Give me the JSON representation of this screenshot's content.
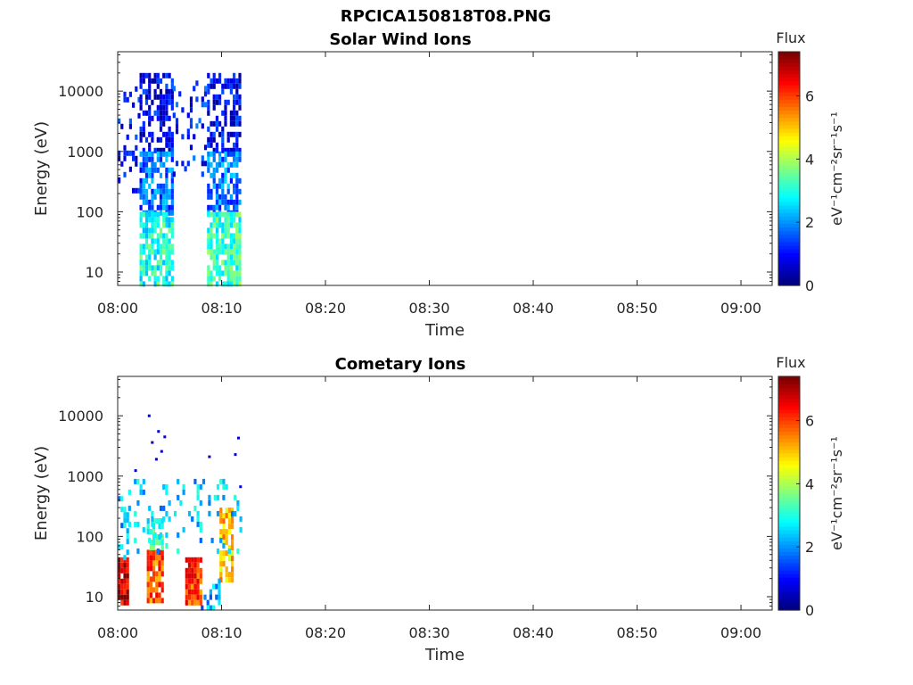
{
  "figure_title": "RPCICA150818T08.PNG",
  "chart_data": [
    {
      "type": "heatmap",
      "title": "Solar Wind Ions",
      "xlabel": "Time",
      "ylabel": "Energy (eV)",
      "y_scale": "log",
      "ylim": [
        6,
        45000
      ],
      "xlim": [
        "08:00",
        "09:03"
      ],
      "x_ticks": [
        "08:00",
        "08:10",
        "08:20",
        "08:30",
        "08:40",
        "08:50",
        "09:00"
      ],
      "y_ticks": [
        "10",
        "100",
        "1000",
        "10000"
      ],
      "y_tick_values": [
        10,
        100,
        1000,
        10000
      ],
      "colorbar": {
        "title": "Flux",
        "label": "eV⁻¹cm⁻²sr⁻¹s⁻¹",
        "ticks": [
          "0",
          "2",
          "4",
          "6"
        ],
        "range": [
          0,
          7.4
        ],
        "colormap": "jet"
      },
      "regions": [
        {
          "t_start_min": 0.0,
          "t_end_min": 2.0,
          "e_min": 200,
          "e_max": 12000,
          "flux": 1.0,
          "fill": 0.25
        },
        {
          "t_start_min": 2.1,
          "t_end_min": 5.3,
          "e_min": 1000,
          "e_max": 20000,
          "flux": 0.8,
          "fill": 0.6
        },
        {
          "t_start_min": 2.1,
          "t_end_min": 5.3,
          "e_min": 100,
          "e_max": 1000,
          "flux": 1.7,
          "fill": 0.7
        },
        {
          "t_start_min": 2.1,
          "t_end_min": 5.3,
          "e_min": 6,
          "e_max": 100,
          "flux": 3.0,
          "fill": 0.75
        },
        {
          "t_start_min": 5.3,
          "t_end_min": 8.6,
          "e_min": 400,
          "e_max": 15000,
          "flux": 1.2,
          "fill": 0.15
        },
        {
          "t_start_min": 8.6,
          "t_end_min": 11.9,
          "e_min": 1000,
          "e_max": 20000,
          "flux": 0.8,
          "fill": 0.6
        },
        {
          "t_start_min": 8.6,
          "t_end_min": 11.9,
          "e_min": 100,
          "e_max": 1000,
          "flux": 1.8,
          "fill": 0.7
        },
        {
          "t_start_min": 8.6,
          "t_end_min": 11.9,
          "e_min": 6,
          "e_max": 100,
          "flux": 3.2,
          "fill": 0.8
        }
      ]
    },
    {
      "type": "heatmap",
      "title": "Cometary Ions",
      "xlabel": "Time",
      "ylabel": "Energy (eV)",
      "y_scale": "log",
      "ylim": [
        6,
        45000
      ],
      "xlim": [
        "08:00",
        "09:03"
      ],
      "x_ticks": [
        "08:00",
        "08:10",
        "08:20",
        "08:30",
        "08:40",
        "08:50",
        "09:00"
      ],
      "y_ticks": [
        "10",
        "100",
        "1000",
        "10000"
      ],
      "y_tick_values": [
        10,
        100,
        1000,
        10000
      ],
      "colorbar": {
        "title": "Flux",
        "label": "eV⁻¹cm⁻²sr⁻¹s⁻¹",
        "ticks": [
          "0",
          "2",
          "4",
          "6"
        ],
        "range": [
          0,
          7.4
        ],
        "colormap": "jet"
      },
      "regions": [
        {
          "t_start_min": 0.0,
          "t_end_min": 1.0,
          "e_min": 8,
          "e_max": 45,
          "flux": 6.8,
          "fill": 0.95
        },
        {
          "t_start_min": 0.0,
          "t_end_min": 1.0,
          "e_min": 45,
          "e_max": 700,
          "flux": 2.3,
          "fill": 0.3
        },
        {
          "t_start_min": 2.8,
          "t_end_min": 4.3,
          "e_min": 8,
          "e_max": 60,
          "flux": 5.8,
          "fill": 0.9
        },
        {
          "t_start_min": 2.8,
          "t_end_min": 4.3,
          "e_min": 60,
          "e_max": 200,
          "flux": 3.0,
          "fill": 0.6
        },
        {
          "t_start_min": 6.5,
          "t_end_min": 8.0,
          "e_min": 8,
          "e_max": 45,
          "flux": 6.0,
          "fill": 0.9
        },
        {
          "t_start_min": 9.8,
          "t_end_min": 11.2,
          "e_min": 20,
          "e_max": 300,
          "flux": 5.0,
          "fill": 0.85
        },
        {
          "t_start_min": 1.0,
          "t_end_min": 11.9,
          "e_min": 60,
          "e_max": 900,
          "flux": 2.4,
          "fill": 0.15
        },
        {
          "t_start_min": 8.0,
          "t_end_min": 9.8,
          "e_min": 6,
          "e_max": 20,
          "flux": 2.2,
          "fill": 0.4
        }
      ],
      "sparse_points": [
        {
          "t_min": 2.9,
          "energy": 10500,
          "flux": 0.6
        },
        {
          "t_min": 3.2,
          "energy": 3800,
          "flux": 0.6
        },
        {
          "t_min": 3.8,
          "energy": 5800,
          "flux": 0.6
        },
        {
          "t_min": 4.4,
          "energy": 4700,
          "flux": 0.6
        },
        {
          "t_min": 3.6,
          "energy": 2000,
          "flux": 0.6
        },
        {
          "t_min": 4.1,
          "energy": 2700,
          "flux": 0.6
        },
        {
          "t_min": 1.6,
          "energy": 1300,
          "flux": 0.7
        },
        {
          "t_min": 8.7,
          "energy": 2200,
          "flux": 0.6
        },
        {
          "t_min": 11.5,
          "energy": 4500,
          "flux": 0.6
        },
        {
          "t_min": 11.2,
          "energy": 2400,
          "flux": 0.6
        },
        {
          "t_min": 11.7,
          "energy": 700,
          "flux": 0.7
        }
      ]
    }
  ]
}
